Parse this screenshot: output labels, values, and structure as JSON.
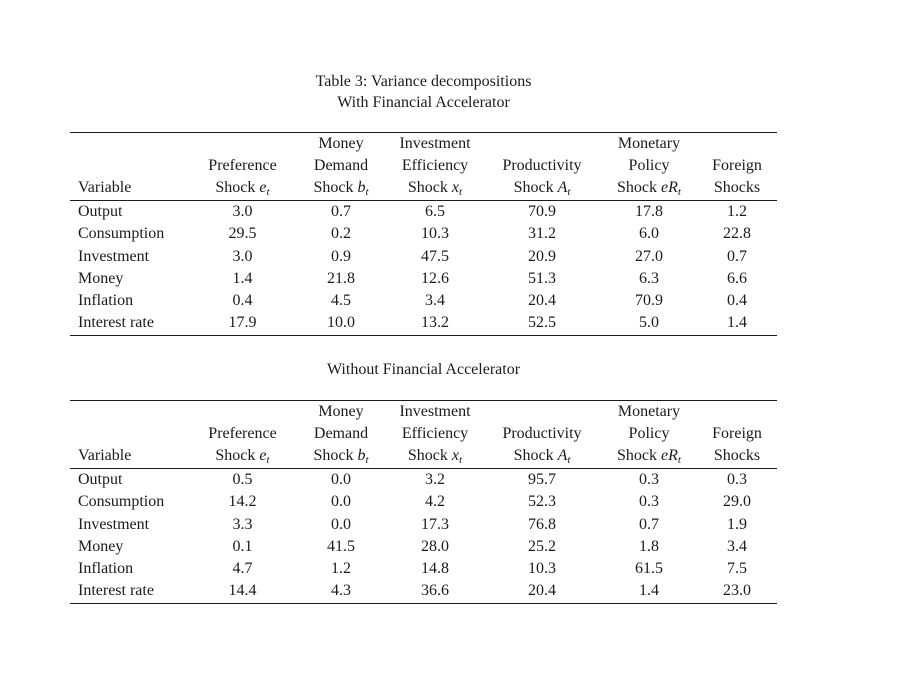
{
  "captions": {
    "title": "Table 3: Variance decompositions",
    "panel1": "With Financial Accelerator",
    "panel2": "Without Financial Accelerator"
  },
  "columns": [
    {
      "key": "variable",
      "lines": [
        "Variable"
      ]
    },
    {
      "key": "preference-shock",
      "lines": [
        "Preference",
        "Shock {e}_{t}"
      ]
    },
    {
      "key": "money-demand-shock",
      "lines": [
        "Money",
        "Demand",
        "Shock {b}_{t}"
      ]
    },
    {
      "key": "investment-efficiency-shock",
      "lines": [
        "Investment",
        "Efficiency",
        "Shock {x}_{t}"
      ]
    },
    {
      "key": "productivity-shock",
      "lines": [
        "Productivity",
        "Shock {A}_{t}"
      ]
    },
    {
      "key": "monetary-policy-shock",
      "lines": [
        "Monetary",
        "Policy",
        "Shock {eR}_{t}"
      ]
    },
    {
      "key": "foreign-shocks",
      "lines": [
        "Foreign",
        "Shocks"
      ]
    }
  ],
  "tables": [
    {
      "id": "with-financial-accelerator",
      "rows": [
        {
          "variable": "Output",
          "values": [
            "3.0",
            "0.7",
            "6.5",
            "70.9",
            "17.8",
            "1.2"
          ]
        },
        {
          "variable": "Consumption",
          "values": [
            "29.5",
            "0.2",
            "10.3",
            "31.2",
            "6.0",
            "22.8"
          ]
        },
        {
          "variable": "Investment",
          "values": [
            "3.0",
            "0.9",
            "47.5",
            "20.9",
            "27.0",
            "0.7"
          ]
        },
        {
          "variable": "Money",
          "values": [
            "1.4",
            "21.8",
            "12.6",
            "51.3",
            "6.3",
            "6.6"
          ]
        },
        {
          "variable": "Inflation",
          "values": [
            "0.4",
            "4.5",
            "3.4",
            "20.4",
            "70.9",
            "0.4"
          ]
        },
        {
          "variable": "Interest rate",
          "values": [
            "17.9",
            "10.0",
            "13.2",
            "52.5",
            "5.0",
            "1.4"
          ]
        }
      ]
    },
    {
      "id": "without-financial-accelerator",
      "rows": [
        {
          "variable": "Output",
          "values": [
            "0.5",
            "0.0",
            "3.2",
            "95.7",
            "0.3",
            "0.3"
          ]
        },
        {
          "variable": "Consumption",
          "values": [
            "14.2",
            "0.0",
            "4.2",
            "52.3",
            "0.3",
            "29.0"
          ]
        },
        {
          "variable": "Investment",
          "values": [
            "3.3",
            "0.0",
            "17.3",
            "76.8",
            "0.7",
            "1.9"
          ]
        },
        {
          "variable": "Money",
          "values": [
            "0.1",
            "41.5",
            "28.0",
            "25.2",
            "1.8",
            "3.4"
          ]
        },
        {
          "variable": "Inflation",
          "values": [
            "4.7",
            "1.2",
            "14.8",
            "10.3",
            "61.5",
            "7.5"
          ]
        },
        {
          "variable": "Interest rate",
          "values": [
            "14.4",
            "4.3",
            "36.6",
            "20.4",
            "1.4",
            "23.0"
          ]
        }
      ]
    }
  ]
}
